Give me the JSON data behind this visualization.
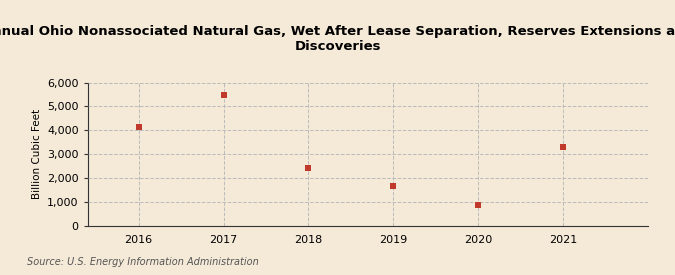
{
  "title": "Annual Ohio Nonassociated Natural Gas, Wet After Lease Separation, Reserves Extensions and\nDiscoveries",
  "ylabel": "Billion Cubic Feet",
  "source": "Source: U.S. Energy Information Administration",
  "years": [
    2016,
    2017,
    2018,
    2019,
    2020,
    2021
  ],
  "values": [
    4118,
    5462,
    2405,
    1656,
    852,
    3310
  ],
  "marker_color": "#c0392b",
  "marker_size": 5,
  "background_color": "#f5ead8",
  "plot_bg_color": "#f5ead8",
  "grid_color": "#bbbbbb",
  "spine_color": "#333333",
  "tick_color": "#333333",
  "ylim": [
    0,
    6000
  ],
  "yticks": [
    0,
    1000,
    2000,
    3000,
    4000,
    5000,
    6000
  ],
  "title_fontsize": 9.5,
  "ylabel_fontsize": 7.5,
  "tick_fontsize": 8,
  "source_fontsize": 7
}
